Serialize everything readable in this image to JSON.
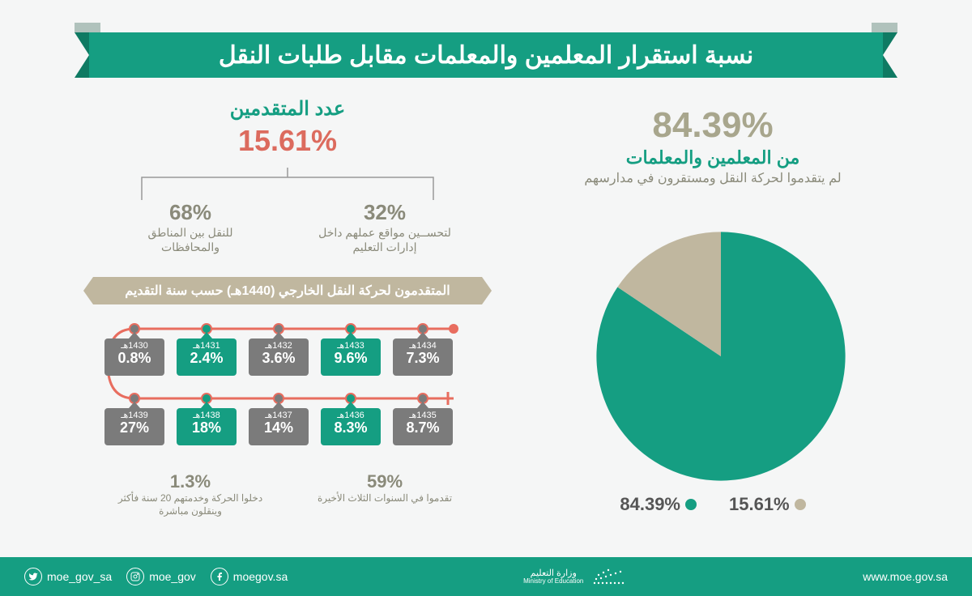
{
  "banner": "نسبة استقرار المعلمين والمعلمات مقابل طلبات النقل",
  "main": {
    "big_pct": "84.39%",
    "sub1": "من المعلمين والمعلمات",
    "sub2": "لم يتقدموا لحركة النقل ومستقرون في مدارسهم"
  },
  "pie": {
    "slices": [
      {
        "pct": 84.39,
        "color": "#159e82",
        "label": "84.39%"
      },
      {
        "pct": 15.61,
        "color": "#c0b79f",
        "label": "15.61%"
      }
    ]
  },
  "applicants": {
    "title": "عدد المتقدمين",
    "pct": "15.61%",
    "split": [
      {
        "pct": "32%",
        "desc": "لتحســين مواقع عملهم\nداخل إدارات التعليم"
      },
      {
        "pct": "68%",
        "desc": "للنقل بين\nالمناطق والمحافظات"
      }
    ]
  },
  "external": {
    "bar": "المتقدمون لحركة النقل الخارجي (1440هـ) حسب سنة التقديم",
    "row1": [
      {
        "year": "1430هـ",
        "pct": "0.8%",
        "color": "#7b7b7b"
      },
      {
        "year": "1431هـ",
        "pct": "2.4%",
        "color": "#159e82"
      },
      {
        "year": "1432هـ",
        "pct": "3.6%",
        "color": "#7b7b7b"
      },
      {
        "year": "1433هـ",
        "pct": "9.6%",
        "color": "#159e82"
      },
      {
        "year": "1434هـ",
        "pct": "7.3%",
        "color": "#7b7b7b"
      }
    ],
    "row2": [
      {
        "year": "1439هـ",
        "pct": "27%",
        "color": "#7b7b7b"
      },
      {
        "year": "1438هـ",
        "pct": "18%",
        "color": "#159e82"
      },
      {
        "year": "1437هـ",
        "pct": "14%",
        "color": "#7b7b7b"
      },
      {
        "year": "1436هـ",
        "pct": "8.3%",
        "color": "#159e82"
      },
      {
        "year": "1435هـ",
        "pct": "8.7%",
        "color": "#7b7b7b"
      }
    ],
    "notes": [
      {
        "pct": "59%",
        "desc": "تقدموا في السنوات\nالثلاث الأخيرة"
      },
      {
        "pct": "1.3%",
        "desc": "دخلوا الحركة وخدمتهم\n20 سنة فأكثر وينقلون مباشرة"
      }
    ]
  },
  "footer": {
    "url": "www.moe.gov.sa",
    "ministry_ar": "وزارة التعليم",
    "ministry_en": "Ministry of Education",
    "social": [
      {
        "icon": "twitter",
        "handle": "moe_gov_sa"
      },
      {
        "icon": "instagram",
        "handle": "moe_gov"
      },
      {
        "icon": "facebook",
        "handle": "moegov.sa"
      }
    ]
  },
  "styling": {
    "bg": "#f5f6f6",
    "primary": "#159e82",
    "accent_tan": "#c0b79f",
    "accent_red": "#dc6b5e",
    "gray_text": "#8a8a7a",
    "box_gray": "#7b7b7b",
    "line_red": "#e86d5f"
  }
}
